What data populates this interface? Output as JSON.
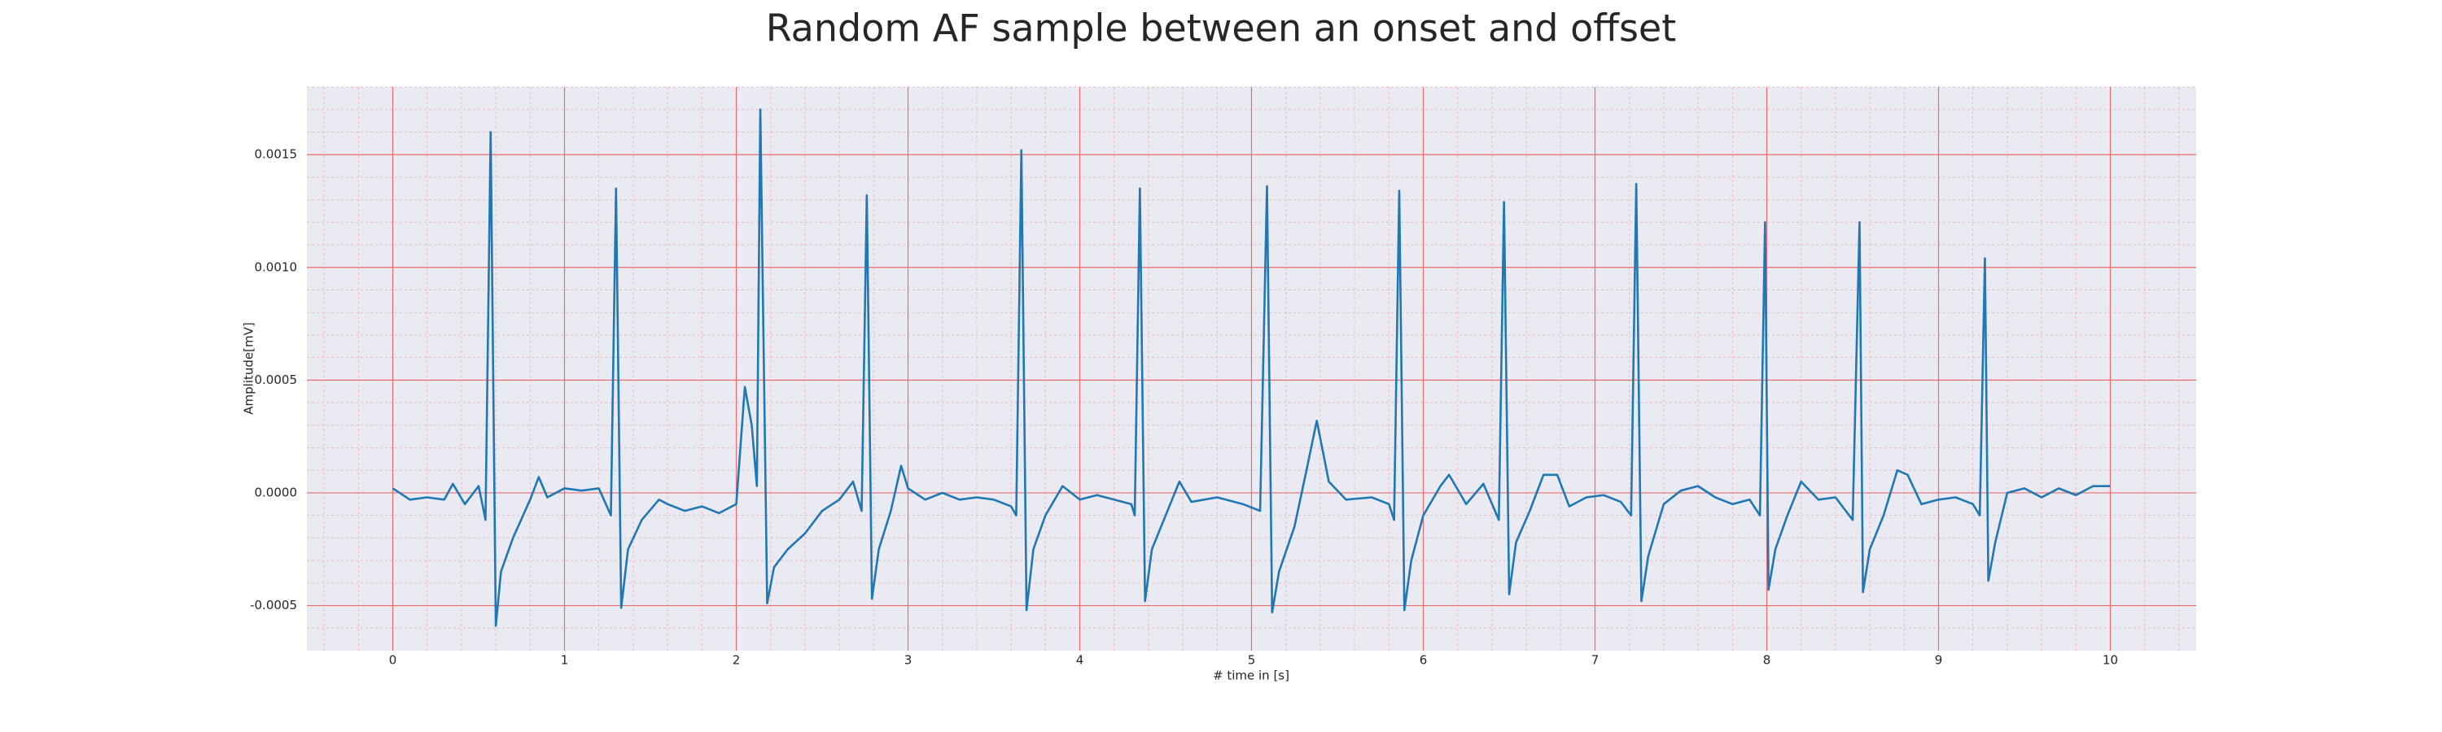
{
  "chart_data": {
    "type": "line",
    "title": "Random AF sample between an onset and offset",
    "xlabel": "# time in [s]",
    "ylabel": "Amplitude[mV]",
    "color": "#1f77b4",
    "grid": true,
    "minor_grid": true,
    "xlim": [
      -0.5,
      10.5
    ],
    "xticks": [
      0,
      1,
      2,
      3,
      4,
      5,
      6,
      7,
      8,
      9,
      10
    ],
    "ylim": [
      -0.0007,
      0.0018
    ],
    "yticks": [
      -0.0005,
      {
        "value": 0,
        "label": "0.0000"
      },
      0.0005,
      {
        "value": 0.001,
        "label": "0.0010"
      },
      0.0015
    ],
    "x": [
      0,
      0.1,
      0.2,
      0.3,
      0.35,
      0.42,
      0.5,
      0.54,
      0.57,
      0.6,
      0.63,
      0.7,
      0.8,
      0.85,
      0.9,
      1.0,
      1.1,
      1.2,
      1.27,
      1.3,
      1.33,
      1.37,
      1.45,
      1.55,
      1.6,
      1.7,
      1.8,
      1.9,
      2.0,
      2.05,
      2.09,
      2.12,
      2.14,
      2.18,
      2.22,
      2.3,
      2.4,
      2.5,
      2.6,
      2.68,
      2.73,
      2.76,
      2.79,
      2.83,
      2.9,
      2.96,
      3.0,
      3.1,
      3.2,
      3.3,
      3.4,
      3.5,
      3.6,
      3.63,
      3.66,
      3.69,
      3.73,
      3.8,
      3.9,
      4.0,
      4.1,
      4.2,
      4.3,
      4.32,
      4.35,
      4.38,
      4.42,
      4.5,
      4.58,
      4.65,
      4.8,
      4.95,
      5.05,
      5.09,
      5.12,
      5.16,
      5.25,
      5.32,
      5.38,
      5.45,
      5.55,
      5.7,
      5.8,
      5.83,
      5.86,
      5.89,
      5.93,
      6.0,
      6.1,
      6.15,
      6.25,
      6.35,
      6.44,
      6.47,
      6.5,
      6.54,
      6.62,
      6.7,
      6.78,
      6.85,
      6.95,
      7.05,
      7.15,
      7.21,
      7.24,
      7.27,
      7.31,
      7.4,
      7.5,
      7.6,
      7.7,
      7.8,
      7.9,
      7.96,
      7.99,
      8.01,
      8.05,
      8.12,
      8.2,
      8.3,
      8.4,
      8.5,
      8.54,
      8.56,
      8.6,
      8.68,
      8.76,
      8.82,
      8.9,
      9.0,
      9.1,
      9.2,
      9.24,
      9.27,
      9.29,
      9.33,
      9.4,
      9.5,
      9.6,
      9.7,
      9.8,
      9.9,
      10
    ],
    "values": [
      2e-05,
      -3e-05,
      -2e-05,
      -3e-05,
      4e-05,
      -5e-05,
      3e-05,
      -0.00012,
      0.0016,
      -0.00059,
      -0.00035,
      -0.0002,
      -3e-05,
      7e-05,
      -2e-05,
      2e-05,
      1e-05,
      2e-05,
      -0.0001,
      0.00135,
      -0.00051,
      -0.00025,
      -0.00012,
      -3e-05,
      -5e-05,
      -8e-05,
      -6e-05,
      -9e-05,
      -5e-05,
      0.00047,
      0.0003,
      3e-05,
      0.0017,
      -0.00049,
      -0.00033,
      -0.00025,
      -0.00018,
      -8e-05,
      -3e-05,
      5e-05,
      -8e-05,
      0.00132,
      -0.00047,
      -0.00025,
      -8e-05,
      0.00012,
      2e-05,
      -3e-05,
      0,
      -3e-05,
      -2e-05,
      -3e-05,
      -6e-05,
      -0.0001,
      0.00152,
      -0.00052,
      -0.00025,
      -0.0001,
      3e-05,
      -3e-05,
      -1e-05,
      -3e-05,
      -5e-05,
      -0.0001,
      0.00135,
      -0.00048,
      -0.00025,
      -0.0001,
      5e-05,
      -4e-05,
      -2e-05,
      -5e-05,
      -8e-05,
      0.00136,
      -0.00053,
      -0.00035,
      -0.00015,
      0.0001,
      0.00032,
      5e-05,
      -3e-05,
      -2e-05,
      -5e-05,
      -0.00012,
      0.00134,
      -0.00052,
      -0.0003,
      -0.0001,
      3e-05,
      8e-05,
      -5e-05,
      4e-05,
      -0.00012,
      0.00129,
      -0.00045,
      -0.00022,
      -8e-05,
      8e-05,
      8e-05,
      -6e-05,
      -2e-05,
      -1e-05,
      -4e-05,
      -0.0001,
      0.00137,
      -0.00048,
      -0.00028,
      -5e-05,
      1e-05,
      3e-05,
      -2e-05,
      -5e-05,
      -3e-05,
      -0.0001,
      0.0012,
      -0.00043,
      -0.00025,
      -0.0001,
      5e-05,
      -3e-05,
      -2e-05,
      -0.00012,
      0.0012,
      -0.00044,
      -0.00025,
      -0.0001,
      0.0001,
      8e-05,
      -5e-05,
      -3e-05,
      -2e-05,
      -5e-05,
      -0.0001,
      0.00104,
      -0.00039,
      -0.00022,
      0,
      2e-05,
      -2e-05,
      2e-05,
      -1e-05,
      3e-05,
      3e-05
    ]
  }
}
